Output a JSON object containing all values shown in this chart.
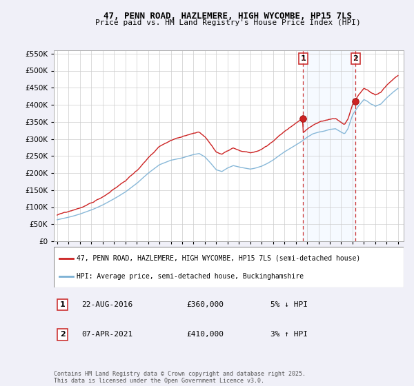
{
  "title": "47, PENN ROAD, HAZLEMERE, HIGH WYCOMBE, HP15 7LS",
  "subtitle": "Price paid vs. HM Land Registry's House Price Index (HPI)",
  "background_color": "#f0f0f8",
  "plot_bg": "#ffffff",
  "legend_line1": "47, PENN ROAD, HAZLEMERE, HIGH WYCOMBE, HP15 7LS (semi-detached house)",
  "legend_line2": "HPI: Average price, semi-detached house, Buckinghamshire",
  "annotation1": [
    "1",
    "22-AUG-2016",
    "£360,000",
    "5% ↓ HPI"
  ],
  "annotation2": [
    "2",
    "07-APR-2021",
    "£410,000",
    "3% ↑ HPI"
  ],
  "footnote": "Contains HM Land Registry data © Crown copyright and database right 2025.\nThis data is licensed under the Open Government Licence v3.0.",
  "vline1_x": 2016.64,
  "vline2_x": 2021.27,
  "sale1_price": 360000,
  "sale2_price": 410000,
  "hpi_color": "#7ab0d4",
  "price_color": "#cc2222",
  "vline_color": "#cc3333",
  "shade_color": "#ddeeff",
  "ylim": [
    0,
    560000
  ],
  "xlim": [
    1994.7,
    2025.5
  ]
}
